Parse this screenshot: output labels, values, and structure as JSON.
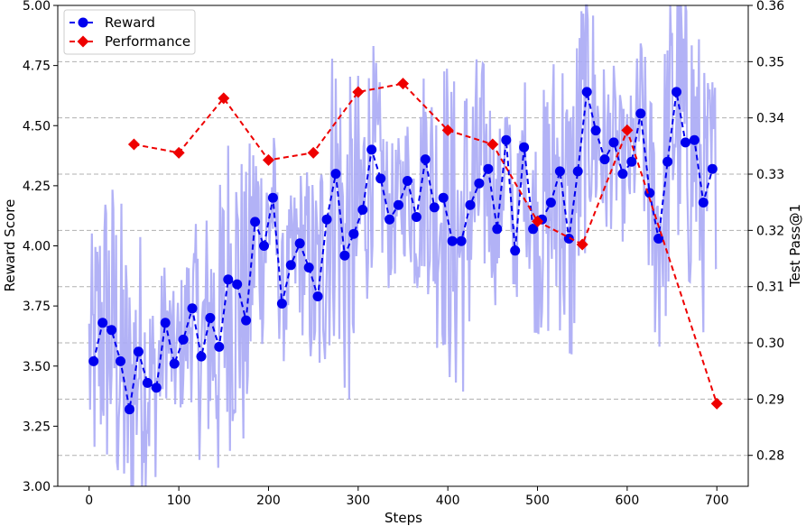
{
  "chart_data": {
    "type": "line",
    "title": "",
    "xlabel": "Steps",
    "ylabel": "Reward Score",
    "y2label": "Test Pass@1",
    "xlim": [
      -35,
      735
    ],
    "ylim": [
      3.0,
      5.0
    ],
    "y2lim": [
      0.2745,
      0.36
    ],
    "xticks": [
      0,
      100,
      200,
      300,
      400,
      500,
      600,
      700
    ],
    "xtick_labels": [
      "0",
      "100",
      "200",
      "300",
      "400",
      "500",
      "600",
      "700"
    ],
    "yticks": [
      3.0,
      3.25,
      3.5,
      3.75,
      4.0,
      4.25,
      4.5,
      4.75,
      5.0
    ],
    "ytick_labels": [
      "3.00",
      "3.25",
      "3.50",
      "3.75",
      "4.00",
      "4.25",
      "4.50",
      "4.75",
      "5.00"
    ],
    "y2ticks": [
      0.28,
      0.29,
      0.3,
      0.31,
      0.32,
      0.33,
      0.34,
      0.35,
      0.36
    ],
    "y2tick_labels": [
      "0.28",
      "0.29",
      "0.30",
      "0.31",
      "0.32",
      "0.33",
      "0.34",
      "0.35",
      "0.36"
    ],
    "grid": "dashed horizontal lines at right-axis ticks",
    "legend": {
      "position": "top-left",
      "entries": [
        {
          "label": "Reward",
          "color": "#0000ee",
          "marker": "circle",
          "linestyle": "dashed"
        },
        {
          "label": "Performance",
          "color": "#ee0000",
          "marker": "diamond",
          "linestyle": "dashed"
        }
      ]
    },
    "series": [
      {
        "name": "Reward (raw, per step)",
        "axis": "left",
        "color": "#aaaaf5",
        "style": "solid-noisy",
        "description": "unlabeled per-step raw reward trace, oscillates around the Reward trend roughly ±0.5"
      },
      {
        "name": "Reward",
        "axis": "left",
        "color": "#0000ee",
        "x": [
          5,
          15,
          25,
          35,
          45,
          55,
          65,
          75,
          85,
          95,
          105,
          115,
          125,
          135,
          145,
          155,
          165,
          175,
          185,
          195,
          205,
          215,
          225,
          235,
          245,
          255,
          265,
          275,
          285,
          295,
          305,
          315,
          325,
          335,
          345,
          355,
          365,
          375,
          385,
          395,
          405,
          415,
          425,
          435,
          445,
          455,
          465,
          475,
          485,
          495,
          505,
          515,
          525,
          535,
          545,
          555,
          565,
          575,
          585,
          595,
          605,
          615,
          625,
          635,
          645,
          655,
          665,
          675,
          685,
          695
        ],
        "values": [
          3.52,
          3.68,
          3.65,
          3.52,
          3.32,
          3.56,
          3.43,
          3.41,
          3.68,
          3.51,
          3.61,
          3.74,
          3.54,
          3.7,
          3.58,
          3.86,
          3.84,
          3.69,
          4.1,
          4.0,
          4.2,
          3.76,
          3.92,
          4.01,
          3.91,
          3.79,
          4.11,
          4.3,
          3.96,
          4.05,
          4.15,
          4.4,
          4.28,
          4.11,
          4.17,
          4.27,
          4.12,
          4.36,
          4.16,
          4.2,
          4.02,
          4.02,
          4.17,
          4.26,
          4.32,
          4.07,
          4.44,
          3.98,
          4.41,
          4.07,
          4.11,
          4.18,
          4.31,
          4.03,
          4.31,
          4.64,
          4.48,
          4.36,
          4.43,
          4.3,
          4.35,
          4.55,
          4.22,
          4.03,
          4.35,
          4.64,
          4.43,
          4.44,
          4.18,
          4.32
        ]
      },
      {
        "name": "Performance",
        "axis": "right",
        "color": "#ee0000",
        "x": [
          50,
          100,
          150,
          200,
          250,
          300,
          350,
          400,
          450,
          500,
          550,
          600,
          700
        ],
        "values": [
          0.3353,
          0.3338,
          0.3435,
          0.3325,
          0.3338,
          0.3446,
          0.3461,
          0.3378,
          0.3353,
          0.3216,
          0.3175,
          0.3378,
          0.2892
        ]
      }
    ]
  }
}
